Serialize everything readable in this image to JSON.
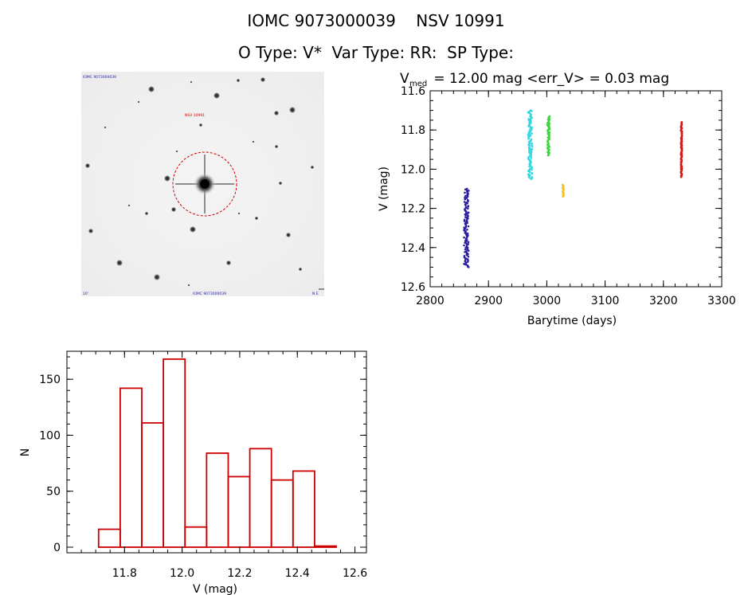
{
  "header": {
    "title_line1": "IOMC 9073000039    NSV 10991",
    "title_line2": "O Type: V*  Var Type: RR:  SP Type:"
  },
  "finder_chart": {
    "label_top_left": "IOMC 9073000039",
    "label_target": "NSV 10991",
    "label_bottom_left": "10'",
    "label_bottom_center": "IOMC 9073000039",
    "label_bottom_right": "N E",
    "circle_color": "#cc0000"
  },
  "chart_data": [
    {
      "type": "scatter",
      "title_prefix": "V",
      "title_subscript": "med",
      "title_rest": " = 12.00 mag <err_V> = 0.03 mag",
      "xlabel": "Barytime (days)",
      "ylabel": "V (mag)",
      "xlim": [
        2800,
        3300
      ],
      "ylim": [
        12.6,
        11.6
      ],
      "y_inverted": true,
      "xticks": [
        2800,
        2900,
        3000,
        3100,
        3200,
        3300
      ],
      "yticks": [
        11.6,
        11.8,
        12.0,
        12.2,
        12.4,
        12.6
      ],
      "series": [
        {
          "color": "#2a1fa0",
          "x_range": [
            2858,
            2866
          ],
          "y_range": [
            12.1,
            12.5
          ]
        },
        {
          "color": "#33d7e0",
          "x_range": [
            2968,
            2975
          ],
          "y_range": [
            11.7,
            12.05
          ]
        },
        {
          "color": "#3ad63a",
          "x_range": [
            3001,
            3005
          ],
          "y_range": [
            11.73,
            11.93
          ]
        },
        {
          "color": "#f0c21a",
          "x_range": [
            3027,
            3029
          ],
          "y_range": [
            12.08,
            12.14
          ]
        },
        {
          "color": "#cc1a1a",
          "x_range": [
            3230,
            3232
          ],
          "y_range": [
            11.76,
            12.04
          ]
        }
      ]
    },
    {
      "type": "bar",
      "subtype": "histogram",
      "xlabel": "V (mag)",
      "ylabel": "N",
      "xlim": [
        11.6,
        12.64
      ],
      "ylim": [
        -5,
        175
      ],
      "xticks": [
        11.8,
        12.0,
        12.2,
        12.4,
        12.6
      ],
      "yticks": [
        0,
        50,
        100,
        150
      ],
      "bar_color": "#cc0000",
      "bin_edges": [
        11.71,
        11.785,
        11.86,
        11.935,
        12.01,
        12.085,
        12.16,
        12.235,
        12.31,
        12.385,
        12.46,
        12.535
      ],
      "values": [
        16,
        142,
        111,
        168,
        18,
        84,
        63,
        88,
        60,
        68,
        1
      ]
    }
  ]
}
